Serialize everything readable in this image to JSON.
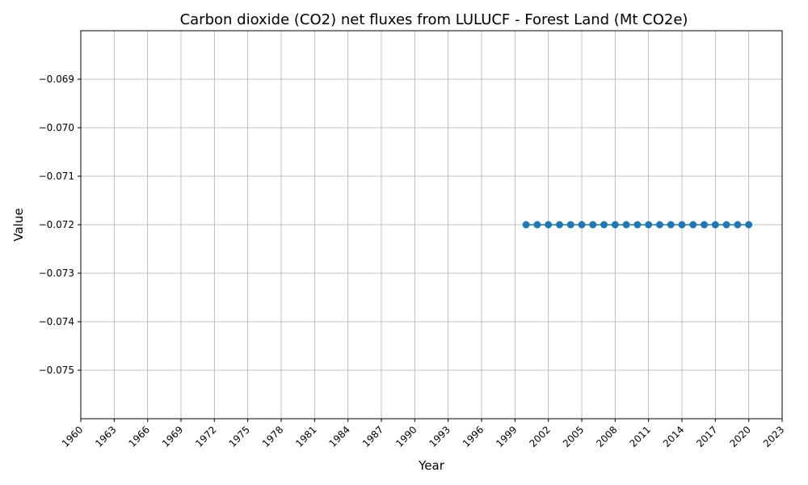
{
  "chart_data": {
    "type": "line",
    "title": "Carbon dioxide (CO2) net fluxes from LULUCF - Forest Land (Mt CO2e)",
    "xlabel": "Year",
    "ylabel": "Value",
    "xlim": [
      1960,
      2023
    ],
    "ylim": [
      -0.076,
      -0.068
    ],
    "grid": true,
    "xticks": [
      1960,
      1963,
      1966,
      1969,
      1972,
      1975,
      1978,
      1981,
      1984,
      1987,
      1990,
      1993,
      1996,
      1999,
      2002,
      2005,
      2008,
      2011,
      2014,
      2017,
      2020,
      2023
    ],
    "yticks": [
      -0.075,
      -0.074,
      -0.073,
      -0.072,
      -0.071,
      -0.07,
      -0.069
    ],
    "ytick_labels": [
      "−0.075",
      "−0.074",
      "−0.073",
      "−0.072",
      "−0.071",
      "−0.070",
      "−0.069"
    ],
    "series": [
      {
        "color": "#1f77b4",
        "x": [
          2000,
          2001,
          2002,
          2003,
          2004,
          2005,
          2006,
          2007,
          2008,
          2009,
          2010,
          2011,
          2012,
          2013,
          2014,
          2015,
          2016,
          2017,
          2018,
          2019,
          2020
        ],
        "y": [
          -0.072,
          -0.072,
          -0.072,
          -0.072,
          -0.072,
          -0.072,
          -0.072,
          -0.072,
          -0.072,
          -0.072,
          -0.072,
          -0.072,
          -0.072,
          -0.072,
          -0.072,
          -0.072,
          -0.072,
          -0.072,
          -0.072,
          -0.072,
          -0.072
        ]
      }
    ]
  }
}
